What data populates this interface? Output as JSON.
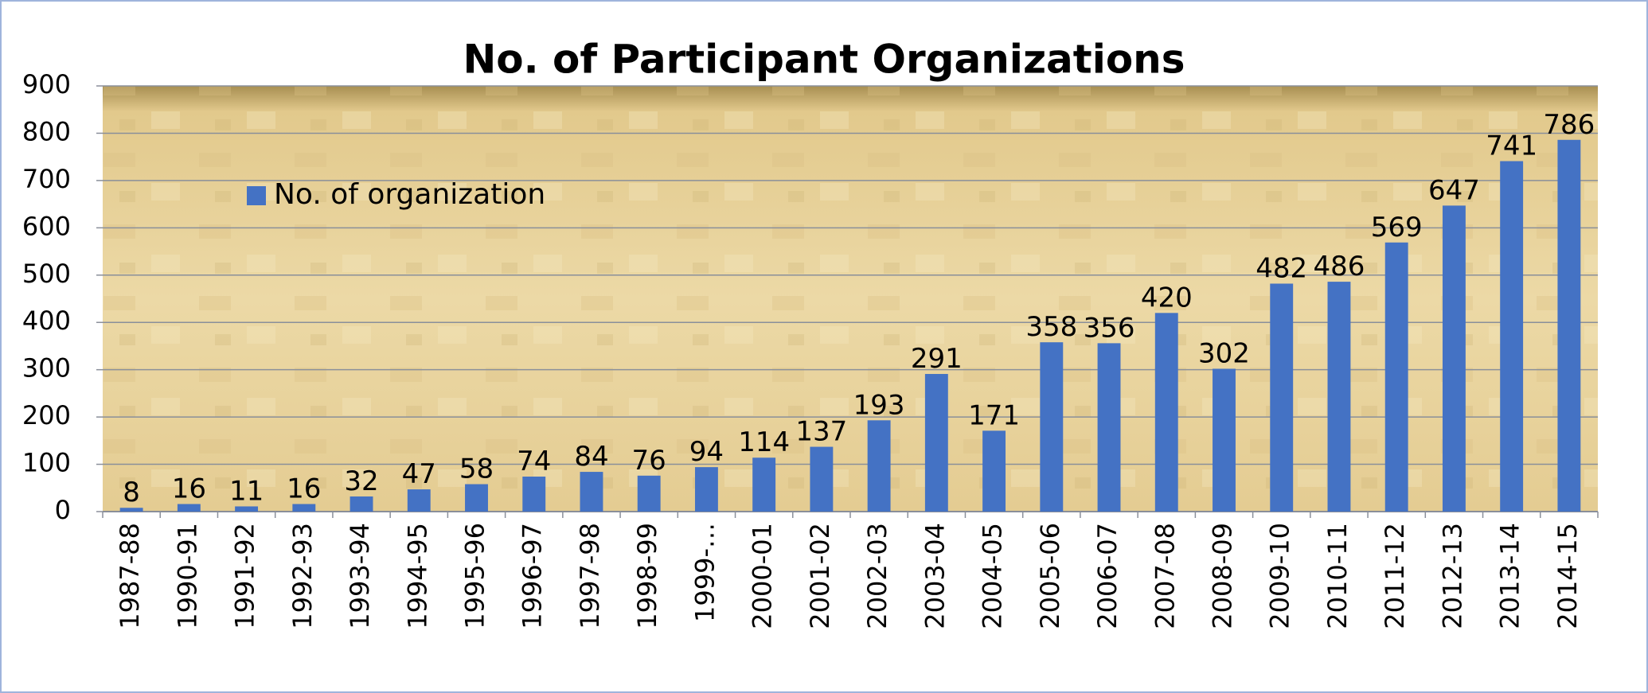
{
  "chart_data": {
    "type": "bar",
    "title": "No. of Participant Organizations",
    "categories": [
      "1987-88",
      "1990-91",
      "1991-92",
      "1992-93",
      "1993-94",
      "1994-95",
      "1995-96",
      "1996-97",
      "1997-98",
      "1998-99",
      "1999-…",
      "2000-01",
      "2001-02",
      "2002-03",
      "2003-04",
      "2004-05",
      "2005-06",
      "2006-07",
      "2007-08",
      "2008-09",
      "2009-10",
      "2010-11",
      "2011-12",
      "2012-13",
      "2013-14",
      "2014-15"
    ],
    "series": [
      {
        "name": "No. of organization",
        "color": "#4472c4",
        "values": [
          8,
          16,
          11,
          16,
          32,
          47,
          58,
          74,
          84,
          76,
          94,
          114,
          137,
          193,
          291,
          171,
          358,
          356,
          420,
          302,
          482,
          486,
          569,
          647,
          741,
          786
        ]
      }
    ],
    "ylim": [
      0,
      900
    ],
    "yticks": [
      0,
      100,
      200,
      300,
      400,
      500,
      600,
      700,
      800,
      900
    ],
    "grid": true,
    "legend": "upper left"
  }
}
